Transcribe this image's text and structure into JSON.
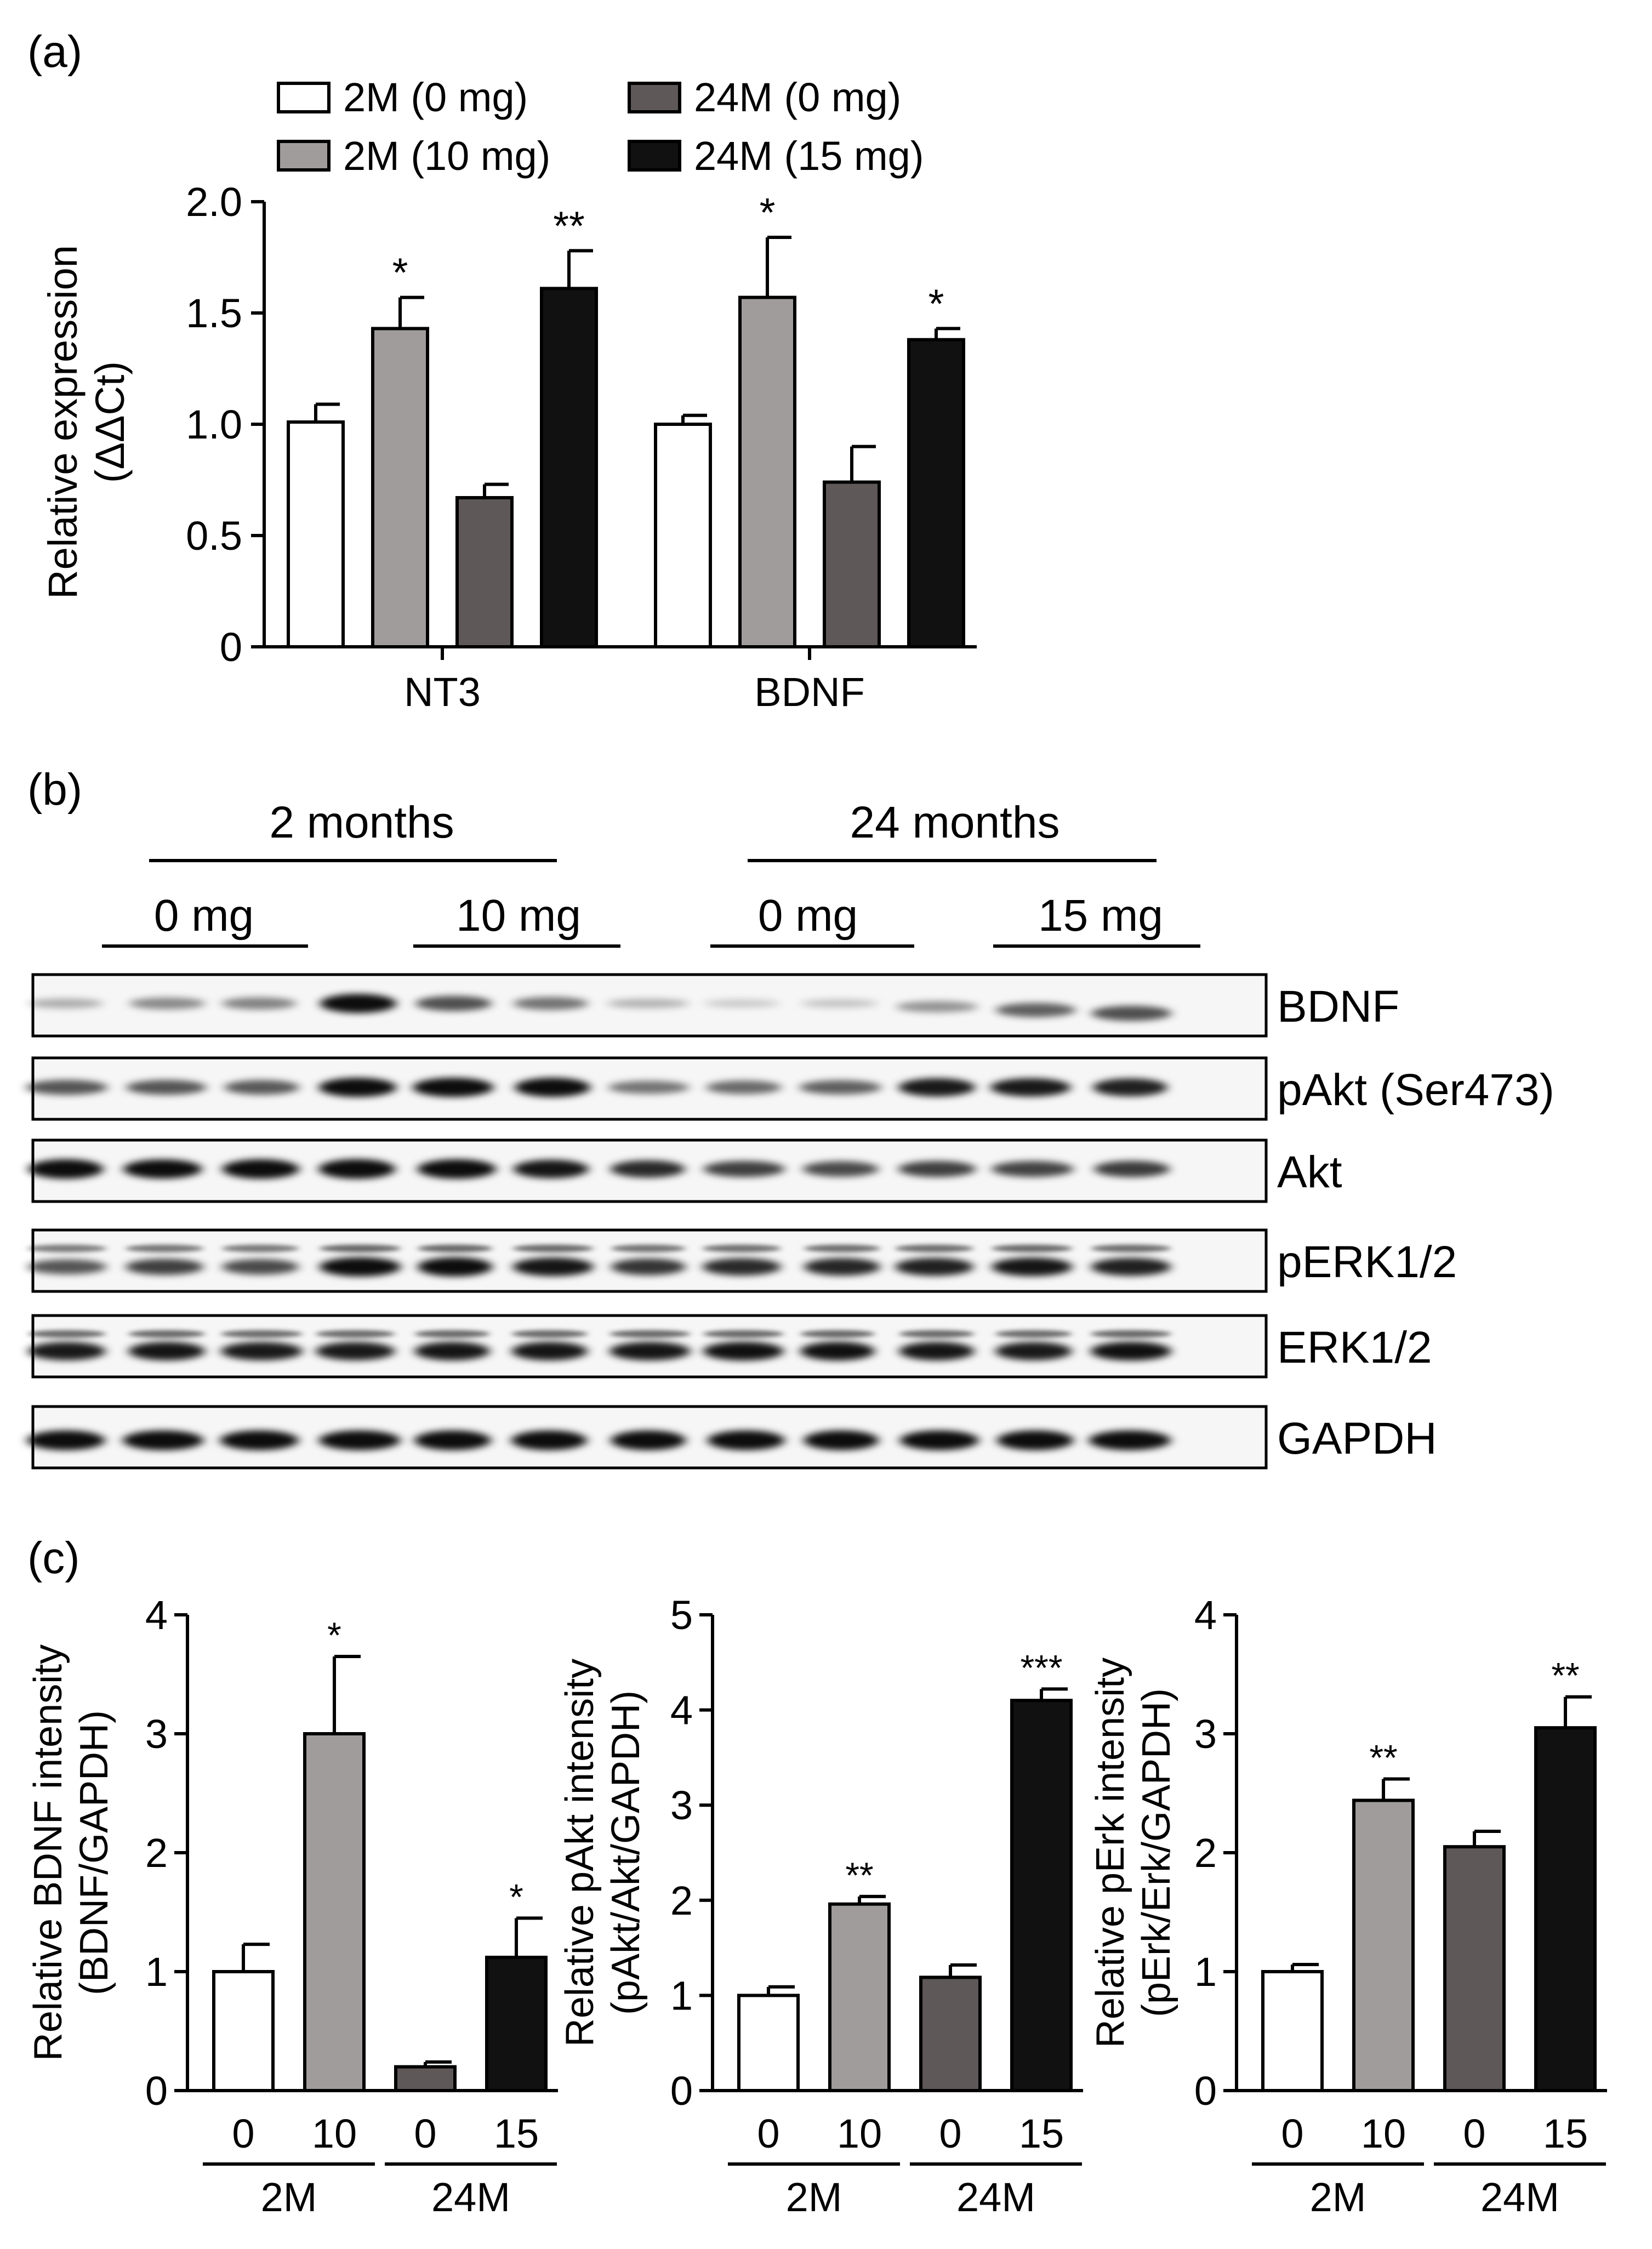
{
  "panel_labels": {
    "a": "(a)",
    "b": "(b)",
    "c": "(c)"
  },
  "colors": {
    "g1": "#ffffff",
    "g2": "#a19c9c",
    "g3": "#5e5858",
    "g4": "#111111",
    "stroke": "#000000"
  },
  "legend": [
    "2M (0 mg)",
    "2M (10 mg)",
    "24M (0 mg)",
    "24M (15 mg)"
  ],
  "blot": {
    "group_labels": [
      "2 months",
      "24 months"
    ],
    "dose_labels": [
      "0 mg",
      "10 mg",
      "0 mg",
      "15 mg"
    ],
    "proteins": [
      "BDNF",
      "pAkt (Ser473)",
      "Akt",
      "pERK1/2",
      "ERK1/2",
      "GAPDH"
    ],
    "lanes": 12
  },
  "chart_data": [
    {
      "type": "bar",
      "panel": "(a)",
      "categories": [
        "NT3",
        "BDNF"
      ],
      "series": [
        {
          "name": "2M (0 mg)",
          "values": [
            1.01,
            1.0
          ],
          "errors": [
            0.08,
            0.04
          ],
          "stars": [
            "",
            ""
          ]
        },
        {
          "name": "2M (10 mg)",
          "values": [
            1.43,
            1.57
          ],
          "errors": [
            0.14,
            0.27
          ],
          "stars": [
            "*",
            "*"
          ]
        },
        {
          "name": "24M (0 mg)",
          "values": [
            0.67,
            0.74
          ],
          "errors": [
            0.06,
            0.16
          ],
          "stars": [
            "",
            ""
          ]
        },
        {
          "name": "24M (15 mg)",
          "values": [
            1.61,
            1.38
          ],
          "errors": [
            0.17,
            0.05
          ],
          "stars": [
            "**",
            "*"
          ]
        }
      ],
      "ylabel": "Relative expression",
      "ylabel2": "(ΔΔCt)",
      "ylim": [
        0,
        2.0
      ],
      "yticks": [
        "0",
        "0.5",
        "1.0",
        "1.5",
        "2.0"
      ]
    },
    {
      "type": "bar",
      "panel": "(c)",
      "ylabel": "Relative BDNF intensity",
      "ylabel2": "(BDNF/GAPDH)",
      "ylim": [
        0,
        4
      ],
      "yticks": [
        "0",
        "1",
        "2",
        "3",
        "4"
      ],
      "categories": [
        "0",
        "10",
        "0",
        "15"
      ],
      "groups": [
        "2M",
        "24M"
      ],
      "values": [
        1.0,
        3.0,
        0.2,
        1.12
      ],
      "errors": [
        0.23,
        0.65,
        0.04,
        0.33
      ],
      "stars": [
        "",
        "*",
        "",
        "*"
      ]
    },
    {
      "type": "bar",
      "panel": "(c)",
      "ylabel": "Relative pAkt intensity",
      "ylabel2": "(pAkt/Akt/GAPDH)",
      "ylim": [
        0,
        5
      ],
      "yticks": [
        "0",
        "1",
        "2",
        "3",
        "4",
        "5"
      ],
      "categories": [
        "0",
        "10",
        "0",
        "15"
      ],
      "groups": [
        "2M",
        "24M"
      ],
      "values": [
        1.0,
        1.96,
        1.19,
        4.1
      ],
      "errors": [
        0.09,
        0.08,
        0.13,
        0.12
      ],
      "stars": [
        "",
        "**",
        "",
        "***"
      ]
    },
    {
      "type": "bar",
      "panel": "(c)",
      "ylabel": "Relative pErk intensity",
      "ylabel2": "(pErk/Erk/GAPDH)",
      "ylim": [
        0,
        4
      ],
      "yticks": [
        "0",
        "1",
        "2",
        "3",
        "4"
      ],
      "categories": [
        "0",
        "10",
        "0",
        "15"
      ],
      "groups": [
        "2M",
        "24M"
      ],
      "values": [
        1.0,
        2.44,
        2.05,
        3.05
      ],
      "errors": [
        0.06,
        0.18,
        0.13,
        0.26
      ],
      "stars": [
        "",
        "**",
        "",
        "**"
      ]
    }
  ]
}
